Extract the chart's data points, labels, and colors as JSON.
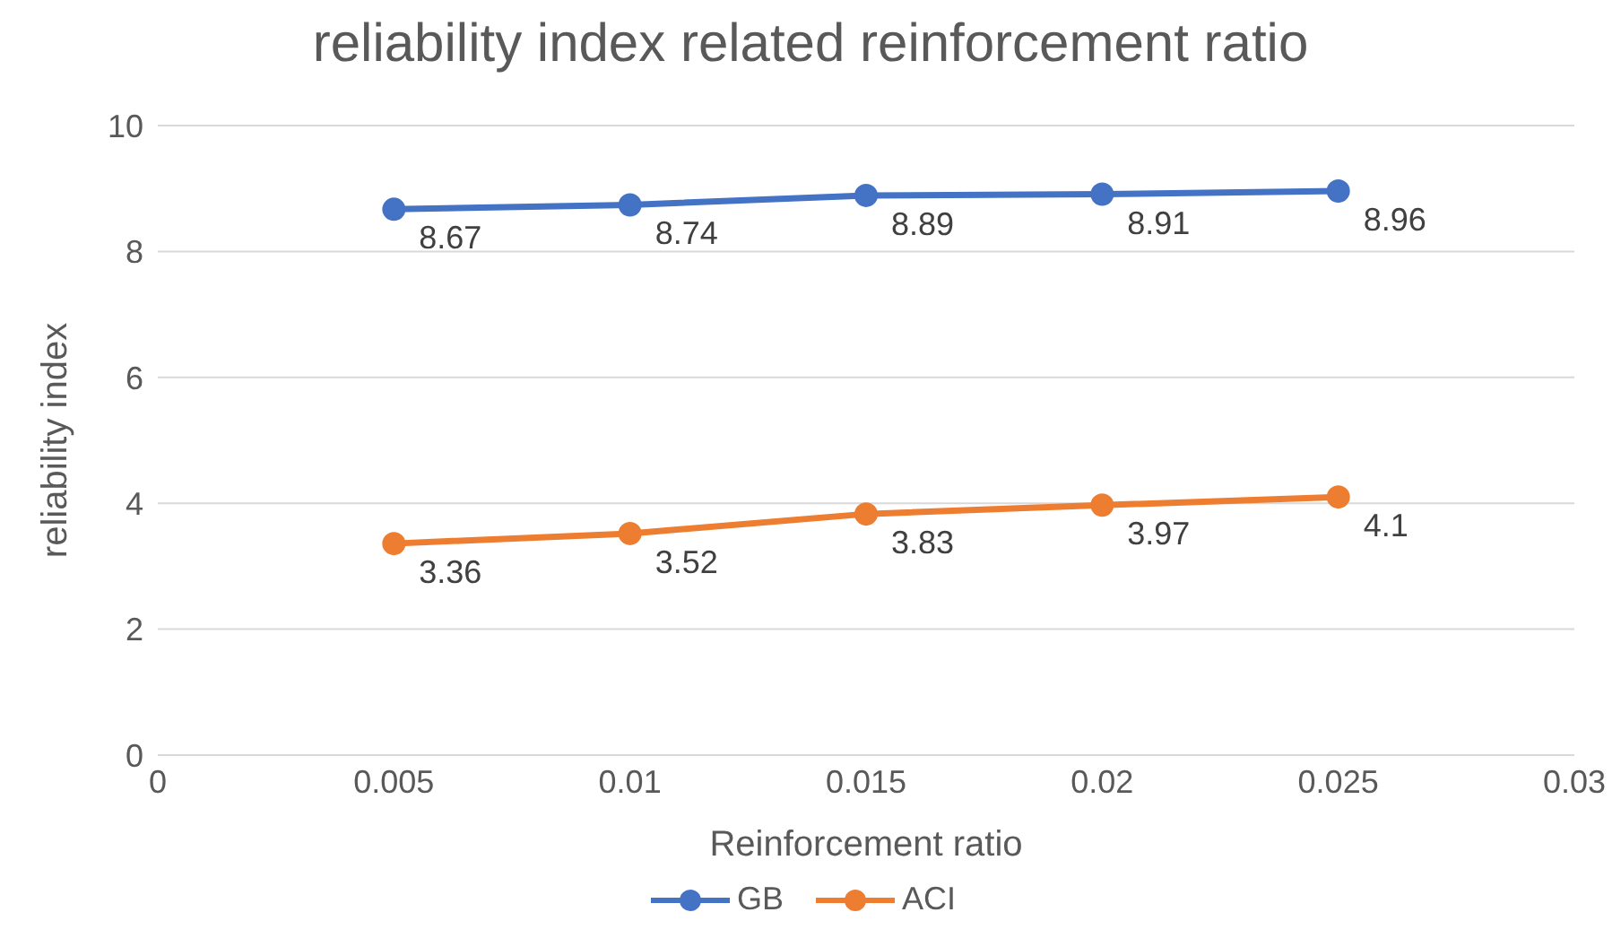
{
  "chart_data": {
    "type": "line",
    "title": "reliability index related reinforcement ratio",
    "xlabel": "Reinforcement ratio",
    "ylabel": "reliability index",
    "x": [
      0.005,
      0.01,
      0.015,
      0.02,
      0.025
    ],
    "series": [
      {
        "name": "GB",
        "color": "#4472c4",
        "values": [
          8.67,
          8.74,
          8.89,
          8.91,
          8.96
        ]
      },
      {
        "name": "ACI",
        "color": "#ed7d31",
        "values": [
          3.36,
          3.52,
          3.83,
          3.97,
          4.1
        ]
      }
    ],
    "xlim": [
      0,
      0.03
    ],
    "xticks": [
      0,
      0.005,
      0.01,
      0.015,
      0.02,
      0.025,
      0.03
    ],
    "ylim": [
      0,
      10
    ],
    "yticks": [
      0,
      2,
      4,
      6,
      8,
      10
    ],
    "grid": "y",
    "legend": "bottom",
    "marker": "circle",
    "line_style": "solid",
    "data_labels": true
  }
}
